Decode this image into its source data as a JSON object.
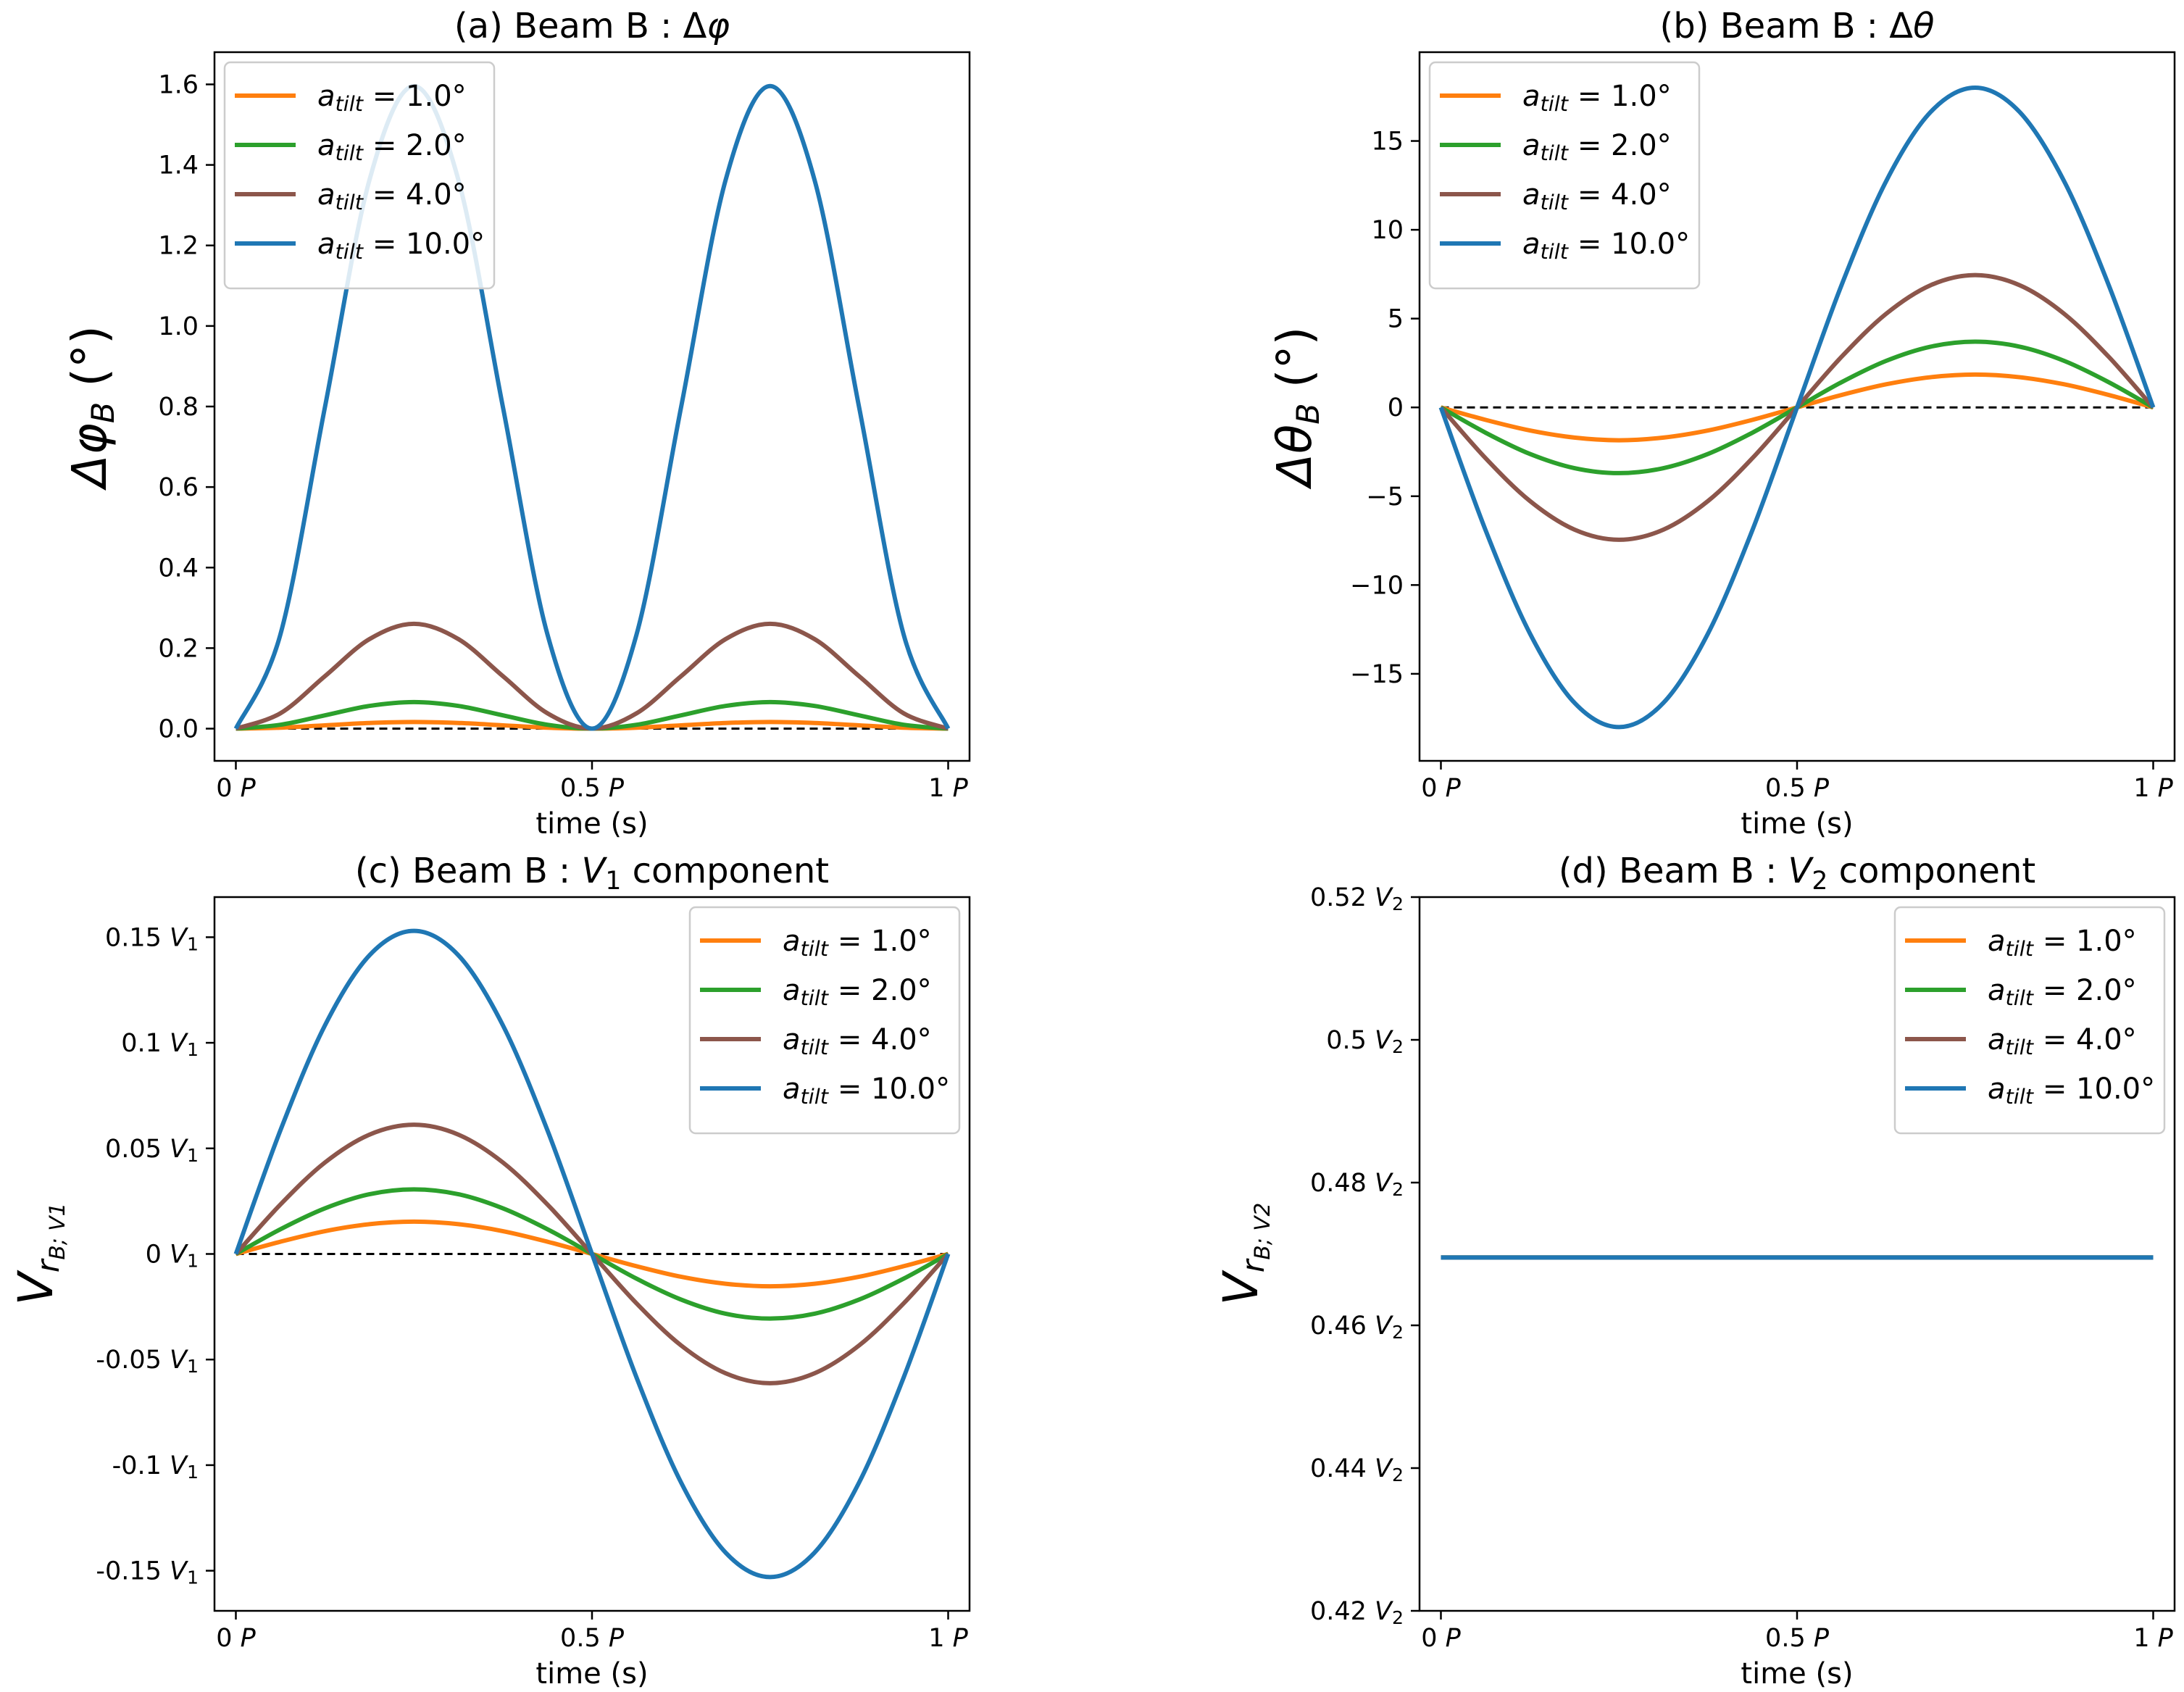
{
  "colors": {
    "orange": "#ff7f0e",
    "green": "#2ca02c",
    "brown": "#8c564b",
    "blue": "#1f77b4",
    "zero_line": "#000000"
  },
  "chart_data": [
    {
      "id": "a",
      "type": "line",
      "title": "(a) Beam B : Δφ",
      "xlabel": "time (s)",
      "ylabel": "Δφ",
      "ylabel_sub": "B",
      "ylabel_suffix": " (°)",
      "xlim": [
        -0.03,
        1.03
      ],
      "ylim": [
        -0.08,
        1.68
      ],
      "xticks": [
        {
          "value": 0,
          "label": "0 P"
        },
        {
          "value": 0.5,
          "label": "0.5 P"
        },
        {
          "value": 1,
          "label": "1 P"
        }
      ],
      "yticks": [
        {
          "value": 0.0,
          "label": "0.0"
        },
        {
          "value": 0.2,
          "label": "0.2"
        },
        {
          "value": 0.4,
          "label": "0.4"
        },
        {
          "value": 0.6,
          "label": "0.6"
        },
        {
          "value": 0.8,
          "label": "0.8"
        },
        {
          "value": 1.0,
          "label": "1.0"
        },
        {
          "value": 1.2,
          "label": "1.2"
        },
        {
          "value": 1.4,
          "label": "1.4"
        },
        {
          "value": 1.6,
          "label": "1.6"
        }
      ],
      "legend_loc": "upper-left",
      "zero_line": true,
      "x": [
        0,
        0.0625,
        0.125,
        0.1875,
        0.25,
        0.3125,
        0.375,
        0.4375,
        0.5,
        0.5625,
        0.625,
        0.6875,
        0.75,
        0.8125,
        0.875,
        0.9375,
        1
      ],
      "series": [
        {
          "name": "a_tilt = 1.0°",
          "color": "orange",
          "values": [
            0,
            0.0024,
            0.0083,
            0.0141,
            0.0165,
            0.0141,
            0.0083,
            0.0024,
            0,
            0.0024,
            0.0083,
            0.0141,
            0.0165,
            0.0141,
            0.0083,
            0.0024,
            0
          ]
        },
        {
          "name": "a_tilt = 2.0°",
          "color": "green",
          "values": [
            0,
            0.0096,
            0.033,
            0.0564,
            0.066,
            0.0564,
            0.033,
            0.0096,
            0,
            0.0096,
            0.033,
            0.0564,
            0.066,
            0.0564,
            0.033,
            0.0096,
            0
          ]
        },
        {
          "name": "a_tilt = 4.0°",
          "color": "brown",
          "values": [
            0,
            0.0381,
            0.1302,
            0.2223,
            0.2604,
            0.2223,
            0.1302,
            0.0381,
            0,
            0.0381,
            0.1302,
            0.2223,
            0.2604,
            0.2223,
            0.1302,
            0.0381,
            0
          ]
        },
        {
          "name": "a_tilt = 10.0°",
          "color": "blue",
          "values": [
            0,
            0.2337,
            0.7979,
            1.3621,
            1.5958,
            1.3621,
            0.7979,
            0.2337,
            0,
            0.2337,
            0.7979,
            1.3621,
            1.5958,
            1.3621,
            0.7979,
            0.2337,
            0
          ]
        }
      ]
    },
    {
      "id": "b",
      "type": "line",
      "title": "(b) Beam B : Δθ",
      "xlabel": "time (s)",
      "ylabel": "Δθ",
      "ylabel_sub": "B",
      "ylabel_suffix": " (°)",
      "xlim": [
        -0.03,
        1.03
      ],
      "ylim": [
        -19.9,
        20.0
      ],
      "xticks": [
        {
          "value": 0,
          "label": "0 P"
        },
        {
          "value": 0.5,
          "label": "0.5 P"
        },
        {
          "value": 1,
          "label": "1 P"
        }
      ],
      "yticks": [
        {
          "value": -15,
          "label": "−15"
        },
        {
          "value": -10,
          "label": "−10"
        },
        {
          "value": -5,
          "label": "−5"
        },
        {
          "value": 0,
          "label": "0"
        },
        {
          "value": 5,
          "label": "5"
        },
        {
          "value": 10,
          "label": "10"
        },
        {
          "value": 15,
          "label": "15"
        }
      ],
      "legend_loc": "upper-left",
      "zero_line": true,
      "x": [
        0,
        0.0625,
        0.125,
        0.1875,
        0.25,
        0.3125,
        0.375,
        0.4375,
        0.5,
        0.5625,
        0.625,
        0.6875,
        0.75,
        0.8125,
        0.875,
        0.9375,
        1
      ],
      "series": [
        {
          "name": "a_tilt = 1.0°",
          "color": "orange",
          "values": [
            0,
            -0.7,
            -1.3,
            -1.7,
            -1.85,
            -1.7,
            -1.3,
            -0.7,
            0,
            0.7,
            1.3,
            1.7,
            1.85,
            1.7,
            1.3,
            0.7,
            0
          ]
        },
        {
          "name": "a_tilt = 2.0°",
          "color": "green",
          "values": [
            0,
            -1.42,
            -2.62,
            -3.42,
            -3.7,
            -3.42,
            -2.62,
            -1.42,
            0,
            1.42,
            2.62,
            3.42,
            3.7,
            3.42,
            2.62,
            1.42,
            0
          ]
        },
        {
          "name": "a_tilt = 4.0°",
          "color": "brown",
          "values": [
            0,
            -2.85,
            -5.27,
            -6.88,
            -7.45,
            -6.88,
            -5.27,
            -2.85,
            0,
            2.85,
            5.27,
            6.88,
            7.45,
            6.88,
            5.27,
            2.85,
            0
          ]
        },
        {
          "name": "a_tilt = 10.0°",
          "color": "blue",
          "values": [
            0,
            -6.89,
            -12.73,
            -16.63,
            -18.0,
            -16.63,
            -12.73,
            -6.89,
            0,
            6.89,
            12.73,
            16.63,
            18.0,
            16.63,
            12.73,
            6.89,
            0
          ]
        }
      ]
    },
    {
      "id": "c",
      "type": "line",
      "title": "(c) Beam B : V1 component",
      "xlabel": "time (s)",
      "ylabel": "V",
      "ylabel_sub": "rB; V1",
      "ylabel_suffix": "",
      "xlim": [
        -0.03,
        1.03
      ],
      "ylim": [
        -0.169,
        0.169
      ],
      "xticks": [
        {
          "value": 0,
          "label": "0 P"
        },
        {
          "value": 0.5,
          "label": "0.5 P"
        },
        {
          "value": 1,
          "label": "1 P"
        }
      ],
      "yticks": [
        {
          "value": -0.15,
          "label": "-0.15 V1"
        },
        {
          "value": -0.1,
          "label": "-0.1 V1"
        },
        {
          "value": -0.05,
          "label": "-0.05 V1"
        },
        {
          "value": 0,
          "label": "0 V1"
        },
        {
          "value": 0.05,
          "label": "0.05 V1"
        },
        {
          "value": 0.1,
          "label": "0.1 V1"
        },
        {
          "value": 0.15,
          "label": "0.15 V1"
        }
      ],
      "legend_loc": "upper-right",
      "zero_line": true,
      "x": [
        0,
        0.0625,
        0.125,
        0.1875,
        0.25,
        0.3125,
        0.375,
        0.4375,
        0.5,
        0.5625,
        0.625,
        0.6875,
        0.75,
        0.8125,
        0.875,
        0.9375,
        1
      ],
      "series": [
        {
          "name": "a_tilt = 1.0°",
          "color": "orange",
          "values": [
            0,
            0.0058,
            0.0108,
            0.0141,
            0.0153,
            0.0141,
            0.0108,
            0.0058,
            0,
            -0.0058,
            -0.0108,
            -0.0141,
            -0.0153,
            -0.0141,
            -0.0108,
            -0.0058,
            0
          ]
        },
        {
          "name": "a_tilt = 2.0°",
          "color": "green",
          "values": [
            0,
            0.0117,
            0.0216,
            0.0283,
            0.0306,
            0.0283,
            0.0216,
            0.0117,
            0,
            -0.0117,
            -0.0216,
            -0.0283,
            -0.0306,
            -0.0283,
            -0.0216,
            -0.0117,
            0
          ]
        },
        {
          "name": "a_tilt = 4.0°",
          "color": "brown",
          "values": [
            0,
            0.0234,
            0.0433,
            0.0565,
            0.0612,
            0.0565,
            0.0433,
            0.0234,
            0,
            -0.0234,
            -0.0433,
            -0.0565,
            -0.0612,
            -0.0565,
            -0.0433,
            -0.0234,
            0
          ]
        },
        {
          "name": "a_tilt = 10.0°",
          "color": "blue",
          "values": [
            0,
            0.0585,
            0.1082,
            0.1414,
            0.153,
            0.1414,
            0.1082,
            0.0585,
            0,
            -0.0585,
            -0.1082,
            -0.1414,
            -0.153,
            -0.1414,
            -0.1082,
            -0.0585,
            0
          ]
        }
      ]
    },
    {
      "id": "d",
      "type": "line",
      "title": "(d) Beam B : V2 component",
      "xlabel": "time (s)",
      "ylabel": "V",
      "ylabel_sub": "rB; V2",
      "ylabel_suffix": "",
      "xlim": [
        -0.03,
        1.03
      ],
      "ylim": [
        0.42,
        0.52
      ],
      "xticks": [
        {
          "value": 0,
          "label": "0 P"
        },
        {
          "value": 0.5,
          "label": "0.5 P"
        },
        {
          "value": 1,
          "label": "1 P"
        }
      ],
      "yticks": [
        {
          "value": 0.42,
          "label": "0.42 V2"
        },
        {
          "value": 0.44,
          "label": "0.44 V2"
        },
        {
          "value": 0.46,
          "label": "0.46 V2"
        },
        {
          "value": 0.48,
          "label": "0.48 V2"
        },
        {
          "value": 0.5,
          "label": "0.5 V2"
        },
        {
          "value": 0.52,
          "label": "0.52 V2"
        }
      ],
      "legend_loc": "upper-right",
      "zero_line": false,
      "x": [
        0,
        1
      ],
      "series": [
        {
          "name": "a_tilt = 1.0°",
          "color": "orange",
          "values": [
            0.4695,
            0.4695
          ]
        },
        {
          "name": "a_tilt = 2.0°",
          "color": "green",
          "values": [
            0.4695,
            0.4695
          ]
        },
        {
          "name": "a_tilt = 4.0°",
          "color": "brown",
          "values": [
            0.4695,
            0.4695
          ]
        },
        {
          "name": "a_tilt = 10.0°",
          "color": "blue",
          "values": [
            0.4695,
            0.4695
          ]
        }
      ]
    }
  ]
}
